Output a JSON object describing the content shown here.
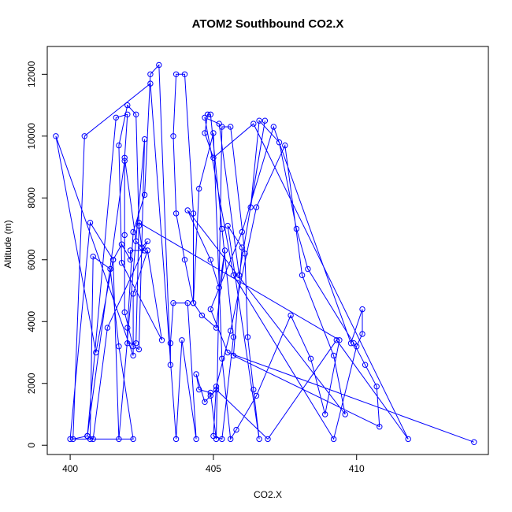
{
  "chart_data": {
    "type": "line",
    "title": "ATOM2 Southbound CO2.X",
    "xlabel": "CO2.X",
    "ylabel": "Altitude (m)",
    "xlim": [
      399.2,
      414.6
    ],
    "ylim": [
      -300,
      12900
    ],
    "xticks": [
      400,
      405,
      410
    ],
    "yticks": [
      0,
      2000,
      4000,
      6000,
      8000,
      10000,
      12000
    ],
    "grid": false,
    "legend": "none",
    "colors": {
      "series": "#0000ff",
      "axes": "#000000",
      "background": "#ffffff"
    },
    "series": [
      {
        "x": [
          414.1,
          405.5,
          404.9,
          406.0,
          407.1,
          409.8,
          410.2,
          410.2,
          410.0,
          409.2,
          405.7,
          404.7,
          405.2,
          405.9,
          406.8,
          406.3,
          406.6,
          407.3,
          407.9,
          408.3,
          409.9,
          410.3,
          410.7,
          410.8,
          405.7,
          406.0,
          405.5,
          406.6,
          406.4,
          406.2,
          406.1,
          405.6,
          405.3,
          405.1,
          404.9,
          404.5,
          404.4,
          404.7,
          404.9,
          405.1,
          406.9,
          409.3,
          411.8,
          406.4,
          405.0,
          404.7,
          404.8,
          404.9,
          405.3,
          405.7,
          405.3,
          405.0,
          405.1,
          405.6,
          406.5,
          407.5,
          408.1,
          409.2,
          409.6,
          404.1,
          404.9,
          405.2,
          405.4,
          405.1,
          404.6,
          404.3,
          404.0,
          403.7,
          403.6,
          403.7,
          404.0,
          404.3,
          404.3,
          404.5,
          405.0,
          405.3,
          405.6,
          405.8,
          406.5,
          407.7,
          408.4,
          408.9,
          409.4,
          402.4,
          402.3,
          402.0,
          402.0,
          402.2,
          402.6,
          402.8,
          403.1,
          403.5,
          403.5,
          403.6,
          404.1,
          404.4,
          403.9,
          403.7,
          402.8,
          400.5,
          400.1,
          400.6,
          401.6,
          402.0,
          401.9,
          402.3,
          402.6,
          402.1,
          402.1,
          401.8,
          401.5,
          400.9,
          399.5,
          402.2,
          402.2,
          402.7,
          403.2,
          401.8,
          401.7,
          402.0,
          402.3,
          402.4,
          402.5,
          402.7,
          401.3,
          400.8,
          400.6,
          401.9,
          401.9,
          401.9,
          402.2,
          402.4,
          402.6,
          401.7,
          401.5,
          400.7,
          400.0,
          402.2,
          401.7,
          401.4,
          400.8,
          400.7
        ],
        "y": [
          100,
          3000,
          4400,
          6900,
          10300,
          3300,
          4400,
          3600,
          3200,
          200,
          5500,
          10600,
          10400,
          5500,
          10500,
          7700,
          10500,
          9800,
          7000,
          5700,
          3300,
          2600,
          1900,
          600,
          2900,
          6400,
          7100,
          200,
          1800,
          3500,
          6200,
          10300,
          10300,
          200,
          1700,
          1800,
          2300,
          1400,
          1600,
          1800,
          200,
          3400,
          200,
          10400,
          9300,
          10100,
          10700,
          10700,
          7000,
          3500,
          200,
          300,
          1900,
          3700,
          7700,
          9700,
          5500,
          2900,
          1000,
          7600,
          6000,
          5100,
          6300,
          3800,
          4200,
          4600,
          6000,
          7500,
          10000,
          12000,
          12000,
          7500,
          4600,
          8300,
          10100,
          2800,
          200,
          500,
          1600,
          4200,
          2800,
          1000,
          3400,
          7200,
          3300,
          3300,
          3800,
          6900,
          8100,
          12000,
          12300,
          2600,
          3300,
          4600,
          4600,
          200,
          3400,
          200,
          11700,
          10000,
          200,
          300,
          10600,
          10700,
          9300,
          6600,
          6300,
          6300,
          6000,
          6500,
          6000,
          3000,
          10000,
          2900,
          4900,
          6300,
          3400,
          5900,
          9700,
          11000,
          10700,
          7100,
          6400,
          6600,
          3800,
          200,
          300,
          9200,
          6800,
          4300,
          3200,
          3100,
          9900,
          200,
          6000,
          7200,
          200,
          200,
          3200,
          5700,
          6100,
          200
        ]
      }
    ]
  }
}
